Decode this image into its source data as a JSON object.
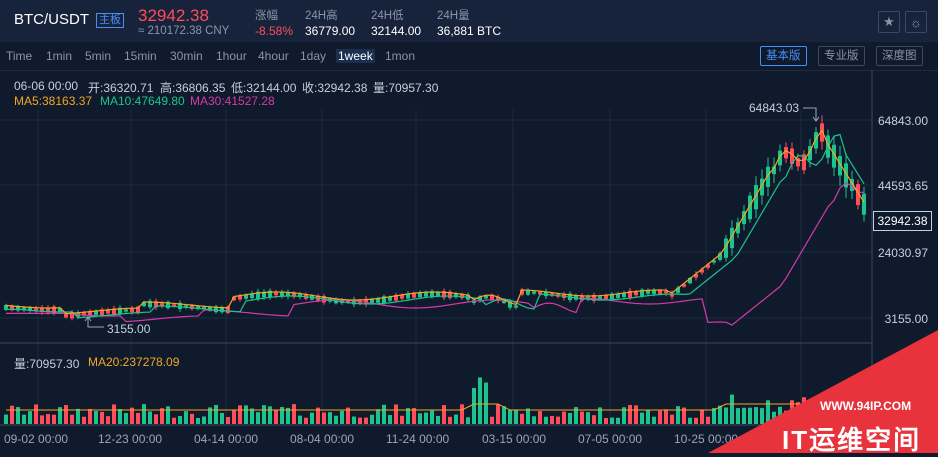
{
  "header": {
    "pair": "BTC/USDT",
    "badge": "主板",
    "price": "32942.38",
    "cny": "≈ 210172.38 CNY",
    "stats": [
      {
        "label": "涨幅",
        "value": "-8.58%"
      },
      {
        "label": "24H高",
        "value": "36779.00"
      },
      {
        "label": "24H低",
        "value": "32144.00"
      },
      {
        "label": "24H量",
        "value": "36,881 BTC"
      }
    ],
    "icons": [
      "star-icon",
      "sun-icon"
    ]
  },
  "toolbar": {
    "timeframes": [
      "Time",
      "1min",
      "5min",
      "15min",
      "30min",
      "1hour",
      "4hour",
      "1day",
      "1week",
      "1mon"
    ],
    "active_timeframe": "1week",
    "views": [
      "基本版",
      "专业版",
      "深度图"
    ],
    "active_view": "基本版"
  },
  "ohlc": {
    "date": "06-06 00:00",
    "open": "开:36320.71",
    "high": "高:36806.35",
    "low": "低:32144.00",
    "close": "收:32942.38",
    "volume": "量:70957.30"
  },
  "ma": {
    "ma5": "MA5:38163.37",
    "ma10": "MA10:47649.80",
    "ma30": "MA30:41527.28"
  },
  "volume_info": {
    "vol": "量:70957.30",
    "ma20": "MA20:237278.09"
  },
  "markers": {
    "high": "64843.03",
    "low": "3155.00"
  },
  "colors": {
    "up": "#1cc48c",
    "down": "#ff4d5a",
    "ma5": "#f5a623",
    "ma10": "#1cc48c",
    "ma30": "#d63aa8",
    "background": "#0f1a2c"
  },
  "chart_data": {
    "type": "candlestick",
    "price_axis_ticks": [
      "64843.00",
      "44593.65",
      "24030.97",
      "3155.00"
    ],
    "current_price_label": "32942.38",
    "time_axis_ticks": [
      "09-02 00:00",
      "12-23 00:00",
      "04-14 00:00",
      "08-04 00:00",
      "11-24 00:00",
      "03-15 00:00",
      "07-05 00:00",
      "10-25 00:00"
    ],
    "ylim": [
      3155.0,
      64843.0
    ]
  },
  "watermark": {
    "url": "WWW.94IP.COM",
    "title": "IT运维空间"
  }
}
